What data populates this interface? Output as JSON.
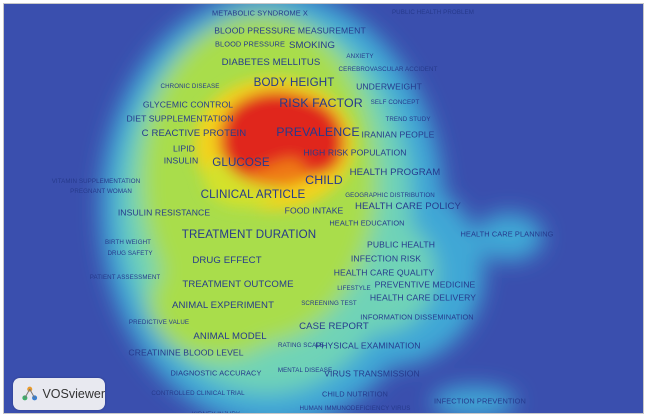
{
  "app": {
    "name": "VOSviewer"
  },
  "colors": {
    "background": "#3a4fae",
    "label": "#263a8c",
    "density_ramp": [
      "#3a4fae",
      "#41a7d6",
      "#6fd3b7",
      "#a9dd4c",
      "#d4e12a",
      "#f2d31a",
      "#ef7a14",
      "#e0281e"
    ]
  },
  "terms": [
    "METABOLIC SYNDROME X",
    "PUBLIC HEALTH PROBLEM",
    "BLOOD PRESSURE MEASUREMENT",
    "BLOOD PRESSURE",
    "SMOKING",
    "ANXIETY",
    "DIABETES MELLITUS",
    "CEREBROVASCULAR ACCIDENT",
    "CHRONIC DISEASE",
    "BODY HEIGHT",
    "UNDERWEIGHT",
    "RISK FACTOR",
    "GLYCEMIC CONTROL",
    "SELF CONCEPT",
    "DIET SUPPLEMENTATION",
    "TREND STUDY",
    "PREVALENCE",
    "C REACTIVE PROTEIN",
    "IRANIAN PEOPLE",
    "LIPID",
    "HIGH RISK POPULATION",
    "INSULIN",
    "GLUCOSE",
    "HEALTH PROGRAM",
    "CHILD",
    "VITAMIN SUPPLEMENTATION",
    "PREGNANT WOMAN",
    "CLINICAL ARTICLE",
    "GEOGRAPHIC DISTRIBUTION",
    "HEALTH CARE POLICY",
    "FOOD INTAKE",
    "INSULIN RESISTANCE",
    "HEALTH EDUCATION",
    "TREATMENT DURATION",
    "HEALTH CARE PLANNING",
    "BIRTH WEIGHT",
    "PUBLIC HEALTH",
    "DRUG SAFETY",
    "INFECTION RISK",
    "DRUG EFFECT",
    "HEALTH CARE QUALITY",
    "PATIENT ASSESSMENT",
    "TREATMENT OUTCOME",
    "PREVENTIVE MEDICINE",
    "LIFESTYLE",
    "HEALTH CARE DELIVERY",
    "ANIMAL EXPERIMENT",
    "SCREENING TEST",
    "INFORMATION DISSEMINATION",
    "PREDICTIVE VALUE",
    "CASE REPORT",
    "ANIMAL MODEL",
    "RATING SCALE",
    "PHYSICAL EXAMINATION",
    "CREATININE BLOOD LEVEL",
    "DIAGNOSTIC ACCURACY",
    "MENTAL DISEASE",
    "VIRUS TRANSMISSION",
    "CONTROLLED CLINICAL TRIAL",
    "CHILD NUTRITION",
    "INFECTION PREVENTION",
    "KIDNEY INJURY",
    "HUMAN IMMUNODEFICIENCY VIRUS"
  ]
}
